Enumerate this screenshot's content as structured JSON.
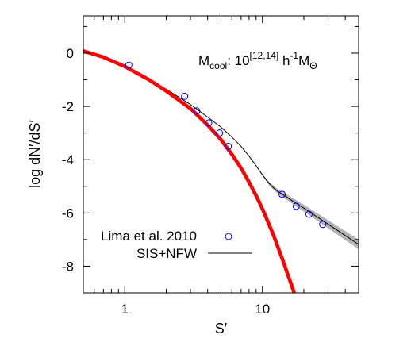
{
  "chart_data": {
    "type": "line",
    "xlabel": "S′",
    "ylabel": "log dN′/dS′",
    "xscale": "log",
    "xlim": [
      0.5,
      50
    ],
    "ylim": [
      -9,
      1.4
    ],
    "x_ticks": [
      {
        "value": 1,
        "label": "1"
      },
      {
        "value": 10,
        "label": "10"
      }
    ],
    "y_ticks": [
      {
        "value": 0,
        "label": "0"
      },
      {
        "value": -2,
        "label": "-2"
      },
      {
        "value": -4,
        "label": "-4"
      },
      {
        "value": -6,
        "label": "-6"
      },
      {
        "value": -8,
        "label": "-8"
      }
    ],
    "annotation": {
      "base": "M",
      "base_sub": "cool",
      "mid": ": 10",
      "mid_sup": "[12,14]",
      "h": " h",
      "h_sup": "-1",
      "m2": "M",
      "m2_sub": "Θ"
    },
    "legend_position": "bottom-left",
    "series": [
      {
        "name": "Lima et al. 2010",
        "kind": "scatter",
        "marker": "open-circle",
        "color": "#0000ff",
        "x": [
          1.07,
          2.72,
          3.33,
          4.07,
          4.88,
          5.65,
          13.9,
          17.6,
          21.8,
          27.4
        ],
        "y": [
          -0.45,
          -1.62,
          -2.17,
          -2.62,
          -3.0,
          -3.5,
          -5.3,
          -5.75,
          -6.05,
          -6.43
        ]
      },
      {
        "name": "SIS+NFW",
        "kind": "line",
        "color": "#000000",
        "band_color": "#999999",
        "x": [
          0.5,
          0.7,
          1.0,
          1.5,
          2.0,
          3.0,
          4.0,
          5.0,
          6.0,
          7.0,
          8.0,
          9.0,
          10.0,
          11.0,
          12.0,
          13.0,
          14.0,
          16.0,
          18.0,
          20.0,
          25.0,
          30.0,
          40.0,
          50.0
        ],
        "y": [
          0.05,
          -0.18,
          -0.5,
          -0.97,
          -1.35,
          -1.93,
          -2.4,
          -2.78,
          -3.15,
          -3.5,
          -3.87,
          -4.23,
          -4.57,
          -4.85,
          -5.05,
          -5.2,
          -5.3,
          -5.5,
          -5.67,
          -5.82,
          -6.15,
          -6.42,
          -6.85,
          -7.18
        ],
        "band_half_width": [
          0,
          0,
          0,
          0,
          0,
          0,
          0,
          0,
          0,
          0,
          0,
          0,
          0.03,
          0.06,
          0.08,
          0.09,
          0.1,
          0.11,
          0.12,
          0.13,
          0.14,
          0.15,
          0.17,
          0.18
        ]
      },
      {
        "name": "",
        "kind": "line",
        "color": "#ff0000",
        "x": [
          0.5,
          0.7,
          1.0,
          1.5,
          2.0,
          3.0,
          4.0,
          5.0,
          6.0,
          7.0,
          8.0,
          9.0,
          10.0,
          11.0,
          12.0,
          13.0,
          14.0,
          15.0,
          16.0,
          17.0,
          18.0
        ],
        "y": [
          0.08,
          -0.15,
          -0.5,
          -1.0,
          -1.42,
          -2.08,
          -2.7,
          -3.25,
          -3.8,
          -4.32,
          -4.85,
          -5.35,
          -5.85,
          -6.35,
          -6.82,
          -7.3,
          -7.75,
          -8.2,
          -8.6,
          -9.0,
          -9.4
        ]
      }
    ]
  }
}
